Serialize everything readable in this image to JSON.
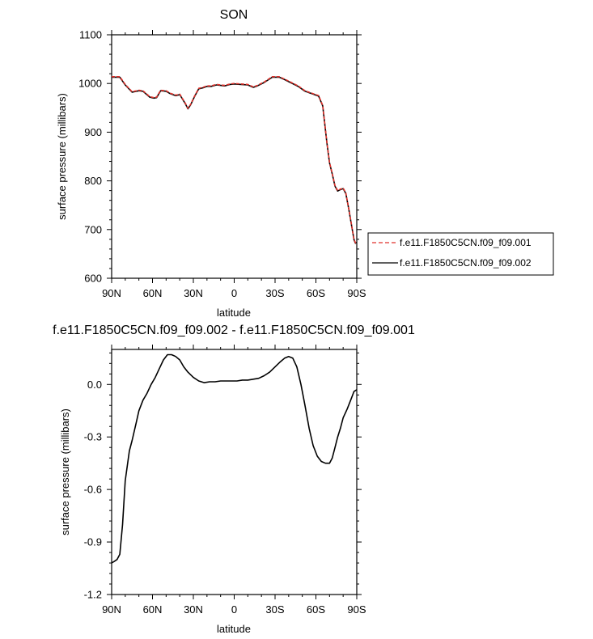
{
  "chart_data": [
    {
      "type": "line",
      "title": "SON",
      "xlabel": "latitude",
      "ylabel": "surface pressure (millibars)",
      "xlim": [
        90,
        -90
      ],
      "ylim": [
        600,
        1100
      ],
      "xticks": [
        90,
        60,
        30,
        0,
        -30,
        -60,
        -90
      ],
      "xtick_labels": [
        "90N",
        "60N",
        "30N",
        "0",
        "30S",
        "60S",
        "90S"
      ],
      "yticks": [
        600,
        700,
        800,
        900,
        1000,
        1100
      ],
      "ytick_labels": [
        "600",
        "700",
        "800",
        "900",
        "1000",
        "1100"
      ],
      "legend": {
        "placement": "right",
        "entries": [
          "f.e11.F1850C5CN.f09_f09.001",
          "f.e11.F1850C5CN.f09_f09.002"
        ]
      },
      "series": [
        {
          "name": "f.e11.F1850C5CN.f09_f09.001",
          "color": "#e0322c",
          "dash": "dashed",
          "x": [
            90,
            84,
            80,
            75,
            70,
            67,
            62,
            59,
            57,
            54,
            50,
            47,
            43,
            40,
            36,
            34,
            32,
            29,
            26,
            23,
            20,
            17,
            13,
            10,
            7,
            3,
            0,
            -5,
            -10,
            -14,
            -17,
            -22,
            -28,
            -33,
            -37,
            -42,
            -47,
            -52,
            -57,
            -62,
            -65,
            -68,
            -70,
            -72,
            -74,
            -76,
            -78,
            -80,
            -82,
            -84,
            -86,
            -88,
            -89,
            -90
          ],
          "values": [
            1014,
            1014,
            998,
            983,
            986,
            985,
            973,
            971,
            972,
            986,
            985,
            980,
            976,
            978,
            960,
            949,
            957,
            975,
            990,
            992,
            995,
            995,
            998,
            997,
            996,
            999,
            1000,
            999,
            998,
            993,
            996,
            1003,
            1014,
            1014,
            1009,
            1002,
            995,
            985,
            980,
            975,
            955,
            880,
            838,
            815,
            790,
            780,
            783,
            785,
            775,
            745,
            712,
            680,
            673,
            675
          ]
        },
        {
          "name": "f.e11.F1850C5CN.f09_f09.002",
          "color": "#000000",
          "dash": "solid",
          "x": [
            90,
            84,
            80,
            75,
            70,
            67,
            62,
            59,
            57,
            54,
            50,
            47,
            43,
            40,
            36,
            34,
            32,
            29,
            26,
            23,
            20,
            17,
            13,
            10,
            7,
            3,
            0,
            -5,
            -10,
            -14,
            -17,
            -22,
            -28,
            -33,
            -37,
            -42,
            -47,
            -52,
            -57,
            -62,
            -65,
            -68,
            -70,
            -72,
            -74,
            -76,
            -78,
            -80,
            -82,
            -84,
            -86,
            -88,
            -89,
            -90
          ],
          "values": [
            1013,
            1013,
            997,
            982,
            985,
            984,
            972,
            970,
            971,
            985,
            984,
            979,
            975,
            977,
            959,
            948,
            956,
            974,
            989,
            991,
            994,
            994,
            997,
            996,
            995,
            998,
            999,
            998,
            997,
            992,
            995,
            1002,
            1013,
            1013,
            1008,
            1001,
            994,
            984,
            979,
            974,
            954,
            879,
            837,
            814,
            789,
            779,
            782,
            784,
            774,
            744,
            711,
            679,
            672,
            674
          ]
        }
      ]
    },
    {
      "type": "line",
      "title": "f.e11.F1850C5CN.f09_f09.002 - f.e11.F1850C5CN.f09_f09.001",
      "xlabel": "latitude",
      "ylabel": "surface pressure (millibars)",
      "xlim": [
        90,
        -90
      ],
      "ylim": [
        -1.2,
        0.2
      ],
      "xticks": [
        90,
        60,
        30,
        0,
        -30,
        -60,
        -90
      ],
      "xtick_labels": [
        "90N",
        "60N",
        "30N",
        "0",
        "30S",
        "60S",
        "90S"
      ],
      "yticks": [
        -1.2,
        -0.9,
        -0.6,
        -0.3,
        0.0
      ],
      "ytick_labels": [
        "-1.2",
        "-0.9",
        "-0.6",
        "-0.3",
        "0.0"
      ],
      "series": [
        {
          "color": "#000000",
          "dash": "solid",
          "x": [
            90,
            88,
            86,
            84,
            82,
            80,
            77,
            75,
            72,
            70,
            67,
            64,
            61,
            58,
            55,
            52,
            49,
            46,
            43,
            40,
            37,
            34,
            30,
            26,
            22,
            18,
            14,
            10,
            6,
            2,
            -2,
            -6,
            -10,
            -14,
            -18,
            -22,
            -26,
            -30,
            -34,
            -37,
            -40,
            -43,
            -46,
            -49,
            -52,
            -55,
            -58,
            -61,
            -64,
            -67,
            -70,
            -72,
            -74,
            -76,
            -78,
            -80,
            -83,
            -86,
            -88,
            -90
          ],
          "values": [
            -1.02,
            -1.01,
            -1.0,
            -0.97,
            -0.8,
            -0.55,
            -0.38,
            -0.32,
            -0.22,
            -0.15,
            -0.09,
            -0.05,
            0.0,
            0.04,
            0.09,
            0.14,
            0.17,
            0.17,
            0.16,
            0.14,
            0.1,
            0.07,
            0.04,
            0.02,
            0.01,
            0.015,
            0.015,
            0.02,
            0.02,
            0.02,
            0.02,
            0.025,
            0.025,
            0.03,
            0.035,
            0.05,
            0.07,
            0.1,
            0.13,
            0.15,
            0.16,
            0.15,
            0.1,
            0.0,
            -0.12,
            -0.25,
            -0.35,
            -0.41,
            -0.44,
            -0.45,
            -0.45,
            -0.42,
            -0.36,
            -0.3,
            -0.25,
            -0.19,
            -0.14,
            -0.08,
            -0.04,
            -0.03
          ]
        }
      ]
    }
  ]
}
